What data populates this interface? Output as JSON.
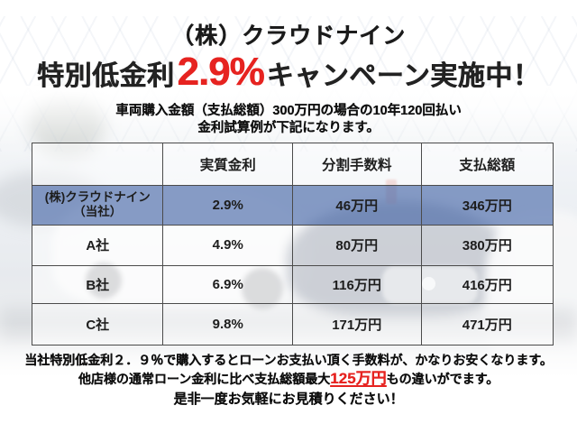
{
  "header": {
    "company": "（株）クラウドナイン",
    "campaign_prefix": "特別低金利",
    "campaign_rate": "2.9%",
    "campaign_suffix": "キャンペーン実施中！",
    "subtitle_line1": "車両購入金額（支払総額）300万円の場合の10年120回払い",
    "subtitle_line2": "金利試算例が下記になります。"
  },
  "table": {
    "headers": [
      "実質金利",
      "分割手数料",
      "支払総額"
    ],
    "rows": [
      {
        "label": "(株)クラウドナイン",
        "label2": "（当社）",
        "rate": "2.9%",
        "fee": "46万円",
        "total": "346万円",
        "highlighted": true
      },
      {
        "label": "A社",
        "rate": "4.9%",
        "fee": "80万円",
        "total": "380万円",
        "highlighted": false
      },
      {
        "label": "B社",
        "rate": "6.9%",
        "fee": "116万円",
        "total": "416万円",
        "highlighted": false
      },
      {
        "label": "C社",
        "rate": "9.8%",
        "fee": "171万円",
        "total": "471万円",
        "highlighted": false
      }
    ]
  },
  "footer": {
    "line1": "当社特別低金利２．９％で購入するとローンお支払い頂く手数料が、かなりお安くなります。",
    "line2_prefix": "他店様の通常ローン金利に比べ支払総額最大",
    "line2_highlight": "125万円",
    "line2_suffix": "もの違いがでます。",
    "line3": "是非一度お気軽にお見積りください！"
  },
  "colors": {
    "accent_red": "#e62320",
    "highlight_row_blue": "#6d86b9",
    "table_border": "#4b4b4b"
  }
}
